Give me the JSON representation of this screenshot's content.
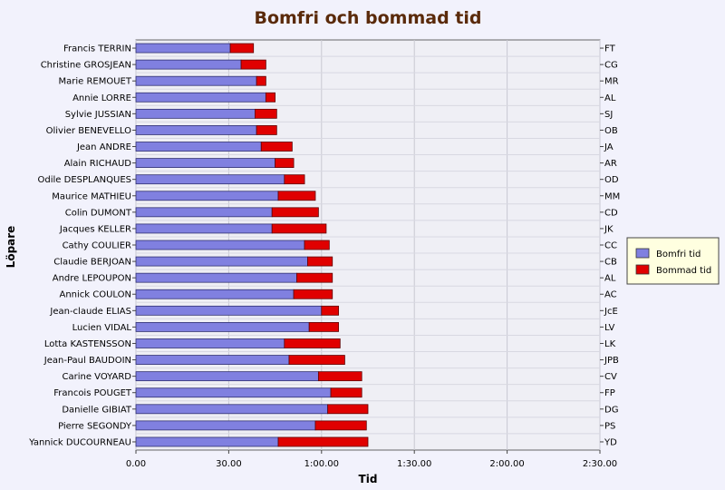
{
  "chart_data": {
    "type": "bar",
    "orientation": "horizontal",
    "stacked": true,
    "title": "Bomfri och bommad tid",
    "xlabel": "Tid",
    "ylabel": "Löpare",
    "xlim": [
      0,
      150
    ],
    "x_tick_labels": [
      "0.00",
      "30.00",
      "1:00.00",
      "1:30.00",
      "2:00.00",
      "2:30.00"
    ],
    "grid": true,
    "legend_position": "right",
    "categories": [
      "Francis TERRIN",
      "Christine GROSJEAN",
      "Marie REMOUET",
      "Annie LORRE",
      "Sylvie JUSSIAN",
      "Olivier BENEVELLO",
      "Jean ANDRE",
      "Alain RICHAUD",
      "Odile DESPLANQUES",
      "Maurice MATHIEU",
      "Colin DUMONT",
      "Jacques KELLER",
      "Cathy COULIER",
      "Claudie BERJOAN",
      "Andre LEPOUPON",
      "Annick COULON",
      "Jean-claude ELIAS",
      "Lucien VIDAL",
      "Lotta KASTENSSON",
      "Jean-Paul BAUDOIN",
      "Carine VOYARD",
      "Francois POUGET",
      "Danielle GIBIAT",
      "Pierre SEGONDY",
      "Yannick DUCOURNEAU"
    ],
    "right_labels": [
      "FT",
      "CG",
      "MR",
      "AL",
      "SJ",
      "OB",
      "JA",
      "AR",
      "OD",
      "MM",
      "CD",
      "JK",
      "CC",
      "CB",
      "AL",
      "AC",
      "JcE",
      "LV",
      "LK",
      "JPB",
      "CV",
      "FP",
      "DG",
      "PS",
      "YD"
    ],
    "series": [
      {
        "name": "Bomfri tid",
        "color": "#8080e0",
        "values": [
          30.5,
          34,
          39,
          42,
          38.5,
          39,
          40.5,
          45,
          48,
          46,
          44,
          44,
          54.5,
          55.5,
          52,
          51,
          60,
          56,
          48,
          49.5,
          59,
          63,
          62,
          58,
          46
        ]
      },
      {
        "name": "Bommad tid",
        "color": "#e00000",
        "values": [
          7.5,
          8,
          3,
          3,
          7,
          6.5,
          10,
          6,
          6.5,
          12,
          15,
          17.5,
          8,
          8,
          11.5,
          12.5,
          5.5,
          9.5,
          18,
          18,
          14,
          10,
          13,
          16.5,
          29
        ]
      }
    ]
  }
}
